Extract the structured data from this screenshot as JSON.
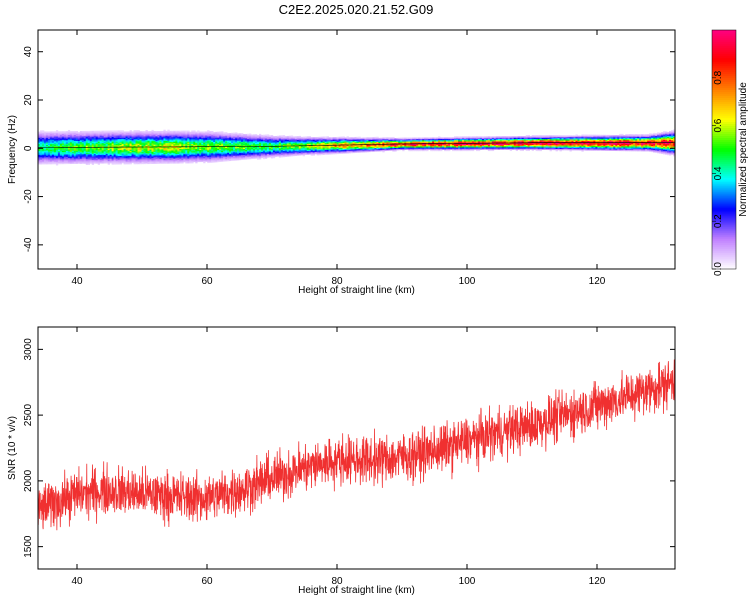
{
  "title": "C2E2.2025.020.21.52.G09",
  "chart_data": [
    {
      "type": "heatmap",
      "xlabel": "Height of straight line (km)",
      "ylabel": "Frequency (Hz)",
      "xlim": [
        34,
        132
      ],
      "ylim": [
        -50,
        49
      ],
      "xticks": [
        40,
        60,
        80,
        100,
        120
      ],
      "yticks": [
        -40,
        -20,
        0,
        20,
        40
      ],
      "band_center_hz": [
        {
          "x": 34,
          "f": 0.0
        },
        {
          "x": 70,
          "f": 0.5
        },
        {
          "x": 90,
          "f": 1.5
        },
        {
          "x": 110,
          "f": 2.0
        },
        {
          "x": 132,
          "f": 2.0
        }
      ],
      "band_halfwidth_hz": [
        {
          "x": 34,
          "w": 6.5
        },
        {
          "x": 60,
          "w": 6.0
        },
        {
          "x": 75,
          "w": 3.5
        },
        {
          "x": 90,
          "w": 2.2
        },
        {
          "x": 110,
          "w": 2.5
        },
        {
          "x": 128,
          "w": 3.0
        },
        {
          "x": 132,
          "w": 4.5
        }
      ],
      "peak_amplitude": [
        {
          "x": 34,
          "a": 0.45
        },
        {
          "x": 50,
          "a": 0.6
        },
        {
          "x": 70,
          "a": 0.5
        },
        {
          "x": 80,
          "a": 0.7
        },
        {
          "x": 92,
          "a": 0.92
        },
        {
          "x": 110,
          "a": 0.95
        },
        {
          "x": 125,
          "a": 0.93
        },
        {
          "x": 132,
          "a": 0.85
        }
      ],
      "colorbar": {
        "label": "Normalized spectral amplitude",
        "range": [
          0,
          1
        ],
        "ticks": [
          0.0,
          0.2,
          0.4,
          0.6,
          0.8
        ],
        "tick_labels": [
          "0.0",
          "0.2",
          "0.4",
          "0.6",
          "0.8"
        ],
        "colors": [
          "#ffffff",
          "#c080ff",
          "#0000ff",
          "#00ffff",
          "#00ff00",
          "#ffff00",
          "#ff8000",
          "#ff0000",
          "#ff0080"
        ]
      }
    },
    {
      "type": "line",
      "xlabel": "Height of straight line (km)",
      "ylabel": "SNR (10 * v/v)",
      "xlim": [
        34,
        132
      ],
      "ylim": [
        1330,
        3170
      ],
      "xticks": [
        40,
        60,
        80,
        100,
        120
      ],
      "yticks": [
        1500,
        2000,
        2500,
        3000
      ],
      "color": "#f03030",
      "series": [
        {
          "values": [
            {
              "x": 34,
              "y": 1780
            },
            {
              "x": 40,
              "y": 1900
            },
            {
              "x": 45,
              "y": 1930
            },
            {
              "x": 50,
              "y": 1900
            },
            {
              "x": 55,
              "y": 1880
            },
            {
              "x": 60,
              "y": 1870
            },
            {
              "x": 65,
              "y": 1930
            },
            {
              "x": 70,
              "y": 2020
            },
            {
              "x": 75,
              "y": 2100
            },
            {
              "x": 80,
              "y": 2160
            },
            {
              "x": 85,
              "y": 2160
            },
            {
              "x": 90,
              "y": 2180
            },
            {
              "x": 95,
              "y": 2230
            },
            {
              "x": 100,
              "y": 2300
            },
            {
              "x": 105,
              "y": 2370
            },
            {
              "x": 110,
              "y": 2420
            },
            {
              "x": 115,
              "y": 2500
            },
            {
              "x": 120,
              "y": 2570
            },
            {
              "x": 125,
              "y": 2650
            },
            {
              "x": 132,
              "y": 2760
            }
          ],
          "noise_amplitude": 170
        }
      ]
    }
  ]
}
